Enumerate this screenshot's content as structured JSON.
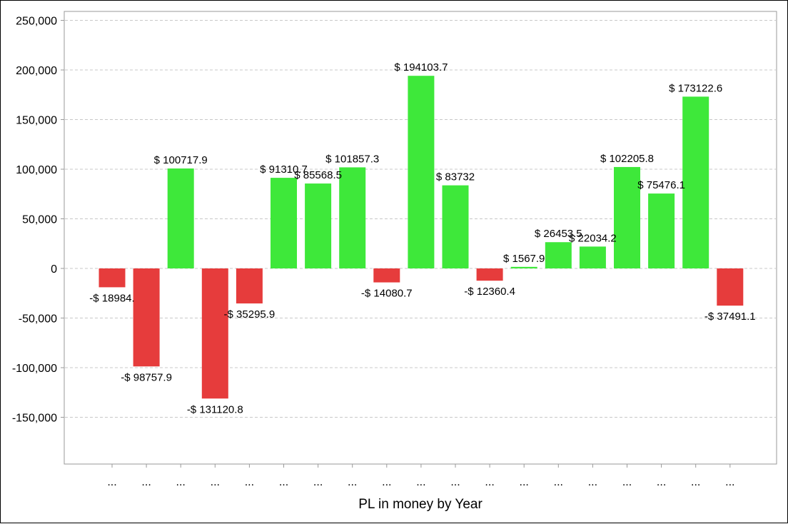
{
  "chart_data": {
    "type": "bar",
    "title": "",
    "xlabel": "PL in money by Year",
    "ylabel": "",
    "ylim": [
      -195000,
      258000
    ],
    "yticks": [
      250000,
      200000,
      150000,
      100000,
      50000,
      0,
      -50000,
      -100000,
      -150000
    ],
    "ytick_labels": [
      "250,000",
      "200,000",
      "150,000",
      "100,000",
      "50,000",
      "0",
      "-50,000",
      "-100,000",
      "-150,000"
    ],
    "grid": true,
    "legend": "none",
    "categories": [
      "...",
      "...",
      "...",
      "...",
      "...",
      "...",
      "...",
      "...",
      "...",
      "...",
      "...",
      "...",
      "...",
      "...",
      "...",
      "...",
      "...",
      "...",
      "..."
    ],
    "values": [
      -18984,
      -98757.9,
      100717.9,
      -131120.8,
      -35295.9,
      91310.7,
      85568.5,
      101857.3,
      -14080.7,
      194103.7,
      83732,
      -12360.4,
      1567.9,
      26453.5,
      22034.2,
      102205.8,
      75476.1,
      173122.6,
      -37491.1
    ],
    "data_labels": [
      "-$ 18984.",
      "-$ 98757.9",
      "$ 100717.9",
      "-$ 131120.8",
      "-$ 35295.9",
      "$ 91310.7",
      "$ 85568.5",
      "$ 101857.3",
      "-$ 14080.7",
      "$ 194103.7",
      "$ 83732",
      "-$ 12360.4",
      "$ 1567.9",
      "$ 26453.5",
      "$ 22034.2",
      "$ 102205.8",
      "$ 75476.1",
      "$ 173122.6",
      "-$ 37491.1"
    ],
    "colors": {
      "positive": "#3ee83a",
      "negative": "#e63c3c",
      "grid": "#c8c8c8",
      "axis": "#999999"
    }
  }
}
